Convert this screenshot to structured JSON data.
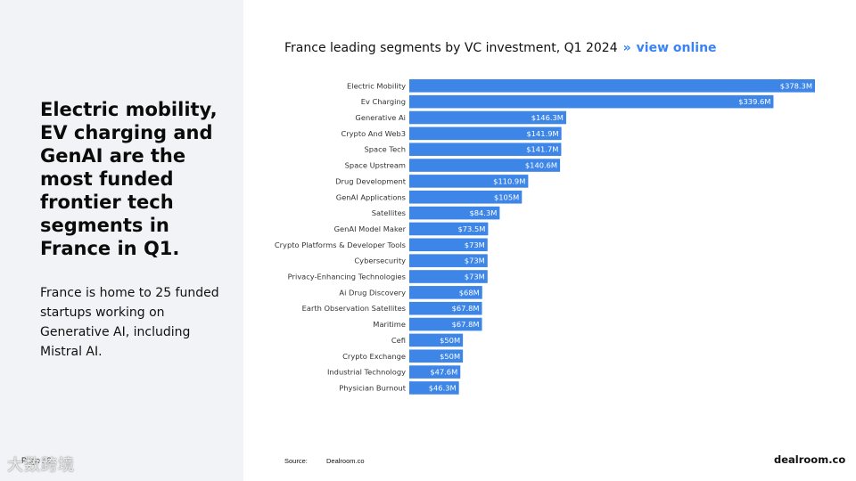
{
  "left": {
    "headline": "Electric mobility, EV charging and GenAI are the most funded frontier tech segments in France in Q1.",
    "body": "France is home to 25 funded startups working on Generative AI, including Mistral AI.",
    "page": "Page / 2"
  },
  "watermark": "大数跨境",
  "title": {
    "text": "France leading segments by VC investment, Q1 2024",
    "separator": "»",
    "link": "view online"
  },
  "footer": {
    "source_label": "Source:",
    "source_value": "Dealroom.co",
    "brand": "dealroom.co"
  },
  "colors": {
    "bar": "#3d86e8",
    "accent": "#3b82f6"
  },
  "chart_data": {
    "type": "bar",
    "orientation": "horizontal",
    "title": "France leading segments by VC investment, Q1 2024",
    "xlabel": "",
    "ylabel": "",
    "xlim": [
      0,
      378.3
    ],
    "grid": false,
    "categories": [
      "Electric Mobility",
      "Ev Charging",
      "Generative Ai",
      "Crypto And Web3",
      "Space Tech",
      "Space Upstream",
      "Drug Development",
      "GenAI Applications",
      "Satellites",
      "GenAI Model Maker",
      "Crypto Platforms & Developer Tools",
      "Cybersecurity",
      "Privacy-Enhancing Technologies",
      "Ai Drug Discovery",
      "Earth Observation Satellites",
      "Maritime",
      "Cefi",
      "Crypto Exchange",
      "Industrial Technology",
      "Physician Burnout"
    ],
    "values": [
      378.3,
      339.6,
      146.3,
      141.9,
      141.7,
      140.6,
      110.9,
      105,
      84.3,
      73.5,
      73,
      73,
      73,
      68,
      67.8,
      67.8,
      50,
      50,
      47.6,
      46.3
    ],
    "value_labels": [
      "$378.3M",
      "$339.6M",
      "$146.3M",
      "$141.9M",
      "$141.7M",
      "$140.6M",
      "$110.9M",
      "$105M",
      "$84.3M",
      "$73.5M",
      "$73M",
      "$73M",
      "$73M",
      "$68M",
      "$67.8M",
      "$67.8M",
      "$50M",
      "$50M",
      "$47.6M",
      "$46.3M"
    ]
  }
}
